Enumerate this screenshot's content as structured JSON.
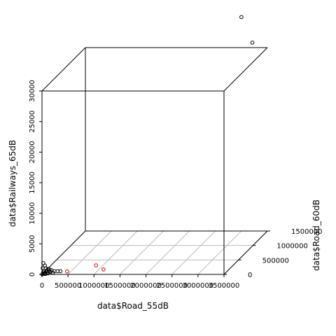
{
  "chart_data": {
    "type": "scatter",
    "title": "",
    "xlabel": "data$Road_55dB",
    "ylabel": "data$Road_60dB",
    "zlabel": "data$Railways_65dB",
    "xlim": [
      0,
      3500000
    ],
    "ylim": [
      0,
      1500000
    ],
    "zlim": [
      0,
      30000
    ],
    "x_ticks": [
      0,
      500000,
      1000000,
      1500000,
      2000000,
      2500000,
      3000000,
      3500000
    ],
    "x_tick_labels": [
      "0",
      "500000",
      "1000000",
      "1500000",
      "2000000",
      "2500000",
      "3000000",
      "3500000"
    ],
    "y_ticks": [
      0,
      500000,
      1000000,
      1500000
    ],
    "y_tick_labels": [
      "0",
      "500000",
      "1000000",
      "1500000"
    ],
    "z_ticks": [
      0,
      5000,
      10000,
      15000,
      20000,
      25000,
      30000
    ],
    "z_tick_labels": [
      "0",
      "5000",
      "10000",
      "15000",
      "20000",
      "25000",
      "30000"
    ],
    "grid": true,
    "colors": {
      "default": "#000000",
      "highlight": "#cc0000"
    },
    "series": [
      {
        "color": "#000000",
        "points": [
          {
            "x": 3000000,
            "y": 1500000,
            "z": 35000
          },
          {
            "x": 3350000,
            "y": 1250000,
            "z": 32000
          },
          {
            "x": 20000,
            "y": 10000,
            "z": 1800
          },
          {
            "x": 40000,
            "y": 30000,
            "z": 1300
          },
          {
            "x": 60000,
            "y": 20000,
            "z": 900
          },
          {
            "x": 10000,
            "y": 5000,
            "z": 1000
          },
          {
            "x": 90000,
            "y": 40000,
            "z": 700
          },
          {
            "x": 30000,
            "y": 15000,
            "z": 500
          },
          {
            "x": 70000,
            "y": 25000,
            "z": 450
          },
          {
            "x": 150000,
            "y": 60000,
            "z": 400
          },
          {
            "x": 110000,
            "y": 50000,
            "z": 250
          },
          {
            "x": 20000,
            "y": 8000,
            "z": 300
          },
          {
            "x": 200000,
            "y": 70000,
            "z": 200
          },
          {
            "x": 50000,
            "y": 20000,
            "z": 150
          },
          {
            "x": 130000,
            "y": 60000,
            "z": 120
          },
          {
            "x": 250000,
            "y": 90000,
            "z": 100
          },
          {
            "x": 10000,
            "y": 5000,
            "z": 80
          },
          {
            "x": 80000,
            "y": 30000,
            "z": 60
          },
          {
            "x": 40000,
            "y": 12000,
            "z": 40
          },
          {
            "x": 100000,
            "y": 35000,
            "z": 20
          },
          {
            "x": 180000,
            "y": 55000,
            "z": 30
          },
          {
            "x": 5000,
            "y": 2000,
            "z": 10
          },
          {
            "x": 60000,
            "y": 18000,
            "z": 5
          },
          {
            "x": 300000,
            "y": 100000,
            "z": 50
          },
          {
            "x": 120000,
            "y": 45000,
            "z": 600
          }
        ]
      },
      {
        "color": "#cc0000",
        "points": [
          {
            "x": 450000,
            "y": 60000,
            "z": 200
          },
          {
            "x": 900000,
            "y": 250000,
            "z": 300
          },
          {
            "x": 1100000,
            "y": 150000,
            "z": 100
          }
        ]
      }
    ]
  }
}
